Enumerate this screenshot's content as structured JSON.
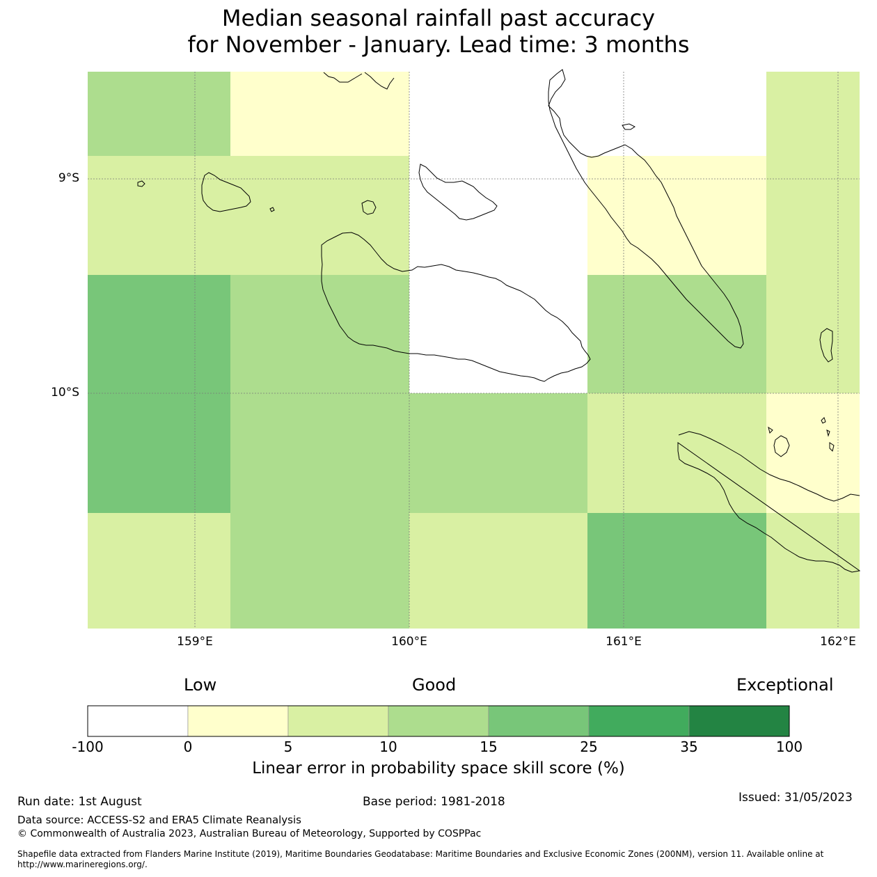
{
  "title": {
    "line1": "Median seasonal rainfall past accuracy",
    "line2": "for November - January. Lead time: 3 months"
  },
  "map": {
    "lat_labels": [
      "9°S",
      "10°S"
    ],
    "lon_labels": [
      "159°E",
      "160°E",
      "161°E",
      "162°E"
    ],
    "grid_cells": [
      {
        "row": 0,
        "col": 0,
        "class": 3
      },
      {
        "row": 0,
        "col": 1,
        "class": 1
      },
      {
        "row": 0,
        "col": 2,
        "class": 0
      },
      {
        "row": 0,
        "col": 3,
        "class": 0
      },
      {
        "row": 0,
        "col": 4,
        "class": 2
      },
      {
        "row": 1,
        "col": 0,
        "class": 2
      },
      {
        "row": 1,
        "col": 1,
        "class": 2
      },
      {
        "row": 1,
        "col": 2,
        "class": 0
      },
      {
        "row": 1,
        "col": 3,
        "class": 1
      },
      {
        "row": 1,
        "col": 4,
        "class": 2
      },
      {
        "row": 2,
        "col": 0,
        "class": 4
      },
      {
        "row": 2,
        "col": 1,
        "class": 3
      },
      {
        "row": 2,
        "col": 2,
        "class": 0
      },
      {
        "row": 2,
        "col": 3,
        "class": 3
      },
      {
        "row": 2,
        "col": 4,
        "class": 2
      },
      {
        "row": 3,
        "col": 0,
        "class": 4
      },
      {
        "row": 3,
        "col": 1,
        "class": 3
      },
      {
        "row": 3,
        "col": 2,
        "class": 3
      },
      {
        "row": 3,
        "col": 3,
        "class": 2
      },
      {
        "row": 3,
        "col": 4,
        "class": 1
      },
      {
        "row": 4,
        "col": 0,
        "class": 2
      },
      {
        "row": 4,
        "col": 1,
        "class": 3
      },
      {
        "row": 4,
        "col": 2,
        "class": 2
      },
      {
        "row": 4,
        "col": 3,
        "class": 4
      },
      {
        "row": 4,
        "col": 4,
        "class": 2
      }
    ]
  },
  "colorbar": {
    "category_labels": [
      "Low",
      "Good",
      "Exceptional"
    ],
    "ticks": [
      "-100",
      "0",
      "5",
      "10",
      "15",
      "25",
      "35",
      "100"
    ],
    "colors": [
      "#ffffff",
      "#ffffcc",
      "#d9f0a3",
      "#addd8e",
      "#78c679",
      "#41ab5d",
      "#238443"
    ],
    "title": "Linear error in probability space skill score (%)"
  },
  "footer": {
    "run_date": "Run date: 1st August",
    "base_period": "Base period: 1981-2018",
    "issued": "Issued: 31/05/2023",
    "data_source": "Data source: ACCESS-S2 and ERA5 Climate Reanalysis",
    "copyright": "© Commonwealth of Australia 2023, Australian Bureau of Meteorology, Supported by COSPPac",
    "shapefile_note": "Shapefile data extracted from Flanders Marine Institute (2019), Maritime Boundaries Geodatabase: Maritime Boundaries and Exclusive Economic Zones (200NM), version 11. Available online at http://www.marineregions.org/."
  }
}
